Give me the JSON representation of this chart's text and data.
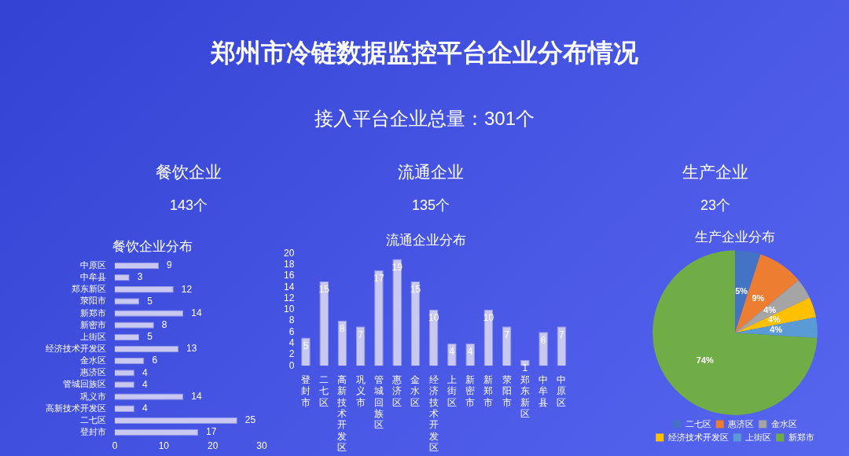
{
  "chart_data": [
    {
      "type": "other",
      "title": "郑州市冷链数据监控平台企业分布情况",
      "subtitle": "接入平台企业总量：301个",
      "annotations": [
        "餐饮企业",
        "143个",
        "流通企业",
        "135个",
        "生产企业",
        "23个"
      ]
    },
    {
      "type": "bar",
      "orientation": "horizontal",
      "title": "餐饮企业分布",
      "categories": [
        "中原区",
        "中牟县",
        "郑东新区",
        "荥阳市",
        "新郑市",
        "新密市",
        "上街区",
        "经济技术开发区",
        "金水区",
        "惠济区",
        "管城回族区",
        "巩义市",
        "高新技术开发区",
        "二七区",
        "登封市"
      ],
      "values": [
        9,
        3,
        12,
        5,
        14,
        8,
        5,
        13,
        6,
        4,
        4,
        14,
        4,
        25,
        17
      ],
      "color": "#c8c8f0",
      "xlim": [
        0,
        30
      ],
      "xticks": [
        0,
        10,
        20,
        30
      ],
      "data_labels": true
    },
    {
      "type": "bar",
      "title": "流通企业分布",
      "categories": [
        "登封市",
        "二七区",
        "高新技术开发区",
        "巩义市",
        "管城回族区",
        "惠济区",
        "金水区",
        "经济技术开发区",
        "上街区",
        "新密市",
        "新郑市",
        "荥阳市",
        "郑东新区",
        "中牟县",
        "中原区"
      ],
      "values": [
        5,
        15,
        8,
        7,
        17,
        19,
        15,
        10,
        4,
        4,
        10,
        7,
        1,
        6,
        7
      ],
      "color": "#c8c8f0",
      "ylim": [
        0,
        20
      ],
      "yticks": [
        0,
        2,
        4,
        6,
        8,
        10,
        12,
        14,
        16,
        18,
        20
      ],
      "data_labels": true
    },
    {
      "type": "pie",
      "title": "生产企业分布",
      "categories": [
        "二七区",
        "惠济区",
        "金水区",
        "经济技术开发区",
        "上街区",
        "新郑市"
      ],
      "values": [
        5,
        9,
        4,
        4,
        4,
        74
      ],
      "colors": [
        "#4472c4",
        "#ed7d31",
        "#a5a5a5",
        "#ffc000",
        "#5b9bd5",
        "#70ad47"
      ],
      "value_labels": [
        "5%",
        "9%",
        "4%",
        "4%",
        "4%",
        "74%"
      ],
      "legend": "bottom"
    }
  ]
}
